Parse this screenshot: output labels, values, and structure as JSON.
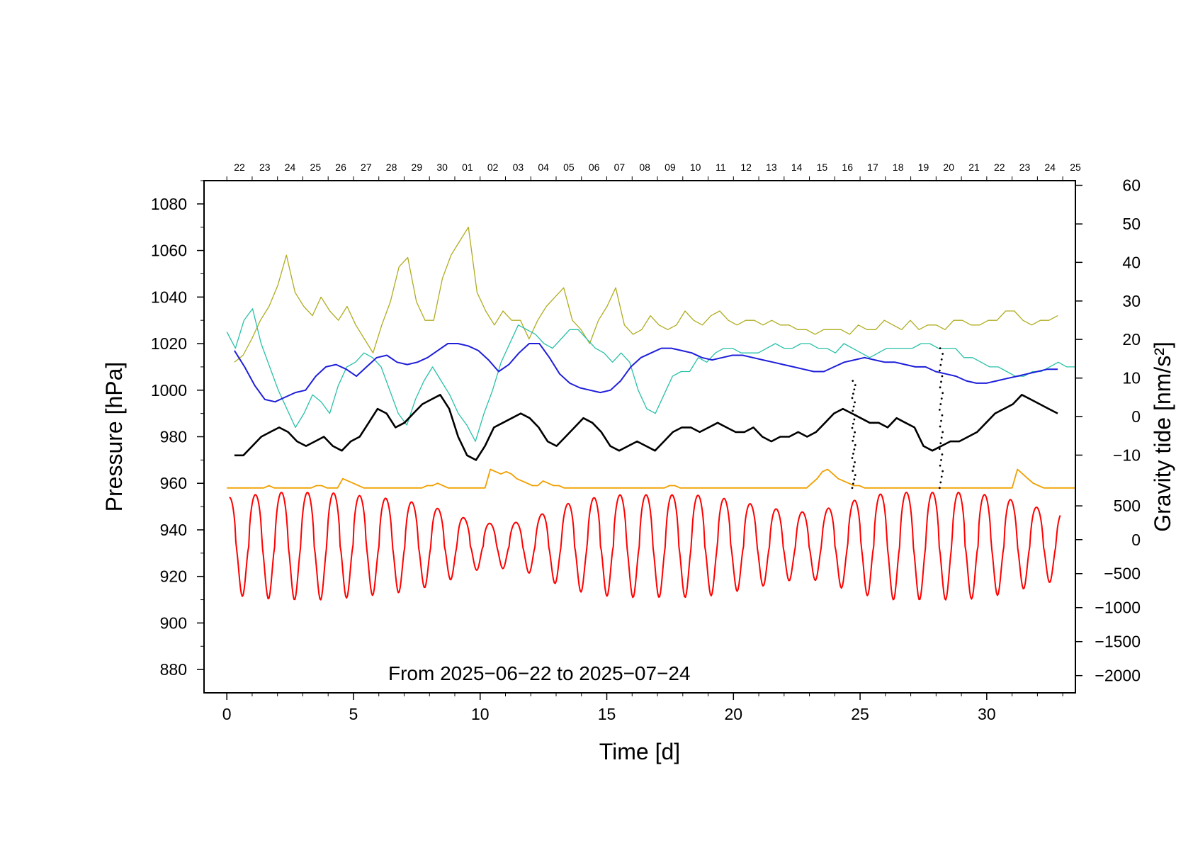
{
  "chart_data": {
    "type": "line",
    "period_label": "From 2025−06−22 to 2025−07−24",
    "xlabel": "Time [d]",
    "ylabel_left": "Pressure [hPa]",
    "ylabel_right": "Gravity tide [nm/s²]",
    "xlim": [
      -0.9,
      33.5
    ],
    "ylim_left": [
      870,
      1090
    ],
    "x_ticks": [
      {
        "value": 0,
        "label": "0"
      },
      {
        "value": 5,
        "label": "5"
      },
      {
        "value": 10,
        "label": "10"
      },
      {
        "value": 15,
        "label": "15"
      },
      {
        "value": 20,
        "label": "20"
      },
      {
        "value": 25,
        "label": "25"
      },
      {
        "value": 30,
        "label": "30"
      }
    ],
    "y_ticks_left": [
      {
        "value": 880,
        "label": "880"
      },
      {
        "value": 900,
        "label": "900"
      },
      {
        "value": 920,
        "label": "920"
      },
      {
        "value": 940,
        "label": "940"
      },
      {
        "value": 960,
        "label": "960"
      },
      {
        "value": 980,
        "label": "980"
      },
      {
        "value": 1000,
        "label": "1000"
      },
      {
        "value": 1020,
        "label": "1020"
      },
      {
        "value": 1040,
        "label": "1040"
      },
      {
        "value": 1060,
        "label": "1060"
      },
      {
        "value": 1080,
        "label": "1080"
      }
    ],
    "right_axis_upper": {
      "note": "gravity residual scale",
      "ticks": [
        {
          "value": 60,
          "label": "60",
          "y_equiv_hpa": 1088
        },
        {
          "value": 50,
          "label": "50",
          "y_equiv_hpa": 1071.4
        },
        {
          "value": 40,
          "label": "40",
          "y_equiv_hpa": 1054.9
        },
        {
          "value": 30,
          "label": "30",
          "y_equiv_hpa": 1038.3
        },
        {
          "value": 20,
          "label": "20",
          "y_equiv_hpa": 1021.8
        },
        {
          "value": 10,
          "label": "10",
          "y_equiv_hpa": 1005.2
        },
        {
          "value": 0,
          "label": "0",
          "y_equiv_hpa": 988.7
        },
        {
          "value": -10,
          "label": "−10",
          "y_equiv_hpa": 972.1
        }
      ]
    },
    "right_axis_lower": {
      "note": "gravity tide scale",
      "ticks": [
        {
          "value": 500,
          "label": "500",
          "y_equiv_hpa": 950.3
        },
        {
          "value": 0,
          "label": "0",
          "y_equiv_hpa": 935.8
        },
        {
          "value": -500,
          "label": "−500",
          "y_equiv_hpa": 921.2
        },
        {
          "value": -1000,
          "label": "−1000",
          "y_equiv_hpa": 906.6
        },
        {
          "value": -1500,
          "label": "−1500",
          "y_equiv_hpa": 892.0
        },
        {
          "value": -2000,
          "label": "−2000",
          "y_equiv_hpa": 877.4
        }
      ]
    },
    "date_axis_top": {
      "labels": [
        "22",
        "23",
        "24",
        "25",
        "26",
        "27",
        "28",
        "29",
        "30",
        "01",
        "02",
        "03",
        "04",
        "05",
        "06",
        "07",
        "08",
        "09",
        "10",
        "11",
        "12",
        "13",
        "14",
        "15",
        "16",
        "17",
        "18",
        "19",
        "20",
        "21",
        "22",
        "23",
        "24",
        "25"
      ],
      "first_label_x": 0.5
    },
    "series": [
      {
        "key": "olive",
        "color": "#b0ac20",
        "style": "line",
        "width": 1.3,
        "x_start": 0.3,
        "x_end": 32.8,
        "values_hpa": [
          1012,
          1015,
          1022,
          1030,
          1036,
          1045,
          1058,
          1042,
          1036,
          1032,
          1040,
          1034,
          1030,
          1036,
          1028,
          1022,
          1016,
          1028,
          1038,
          1053,
          1057,
          1038,
          1030,
          1030,
          1048,
          1058,
          1064,
          1070,
          1042,
          1034,
          1028,
          1034,
          1030,
          1030,
          1022,
          1030,
          1036,
          1040,
          1044,
          1030,
          1026,
          1020,
          1030,
          1036,
          1044,
          1028,
          1024,
          1026,
          1032,
          1028,
          1026,
          1028,
          1034,
          1030,
          1028,
          1032,
          1034,
          1030,
          1028,
          1030,
          1030,
          1028,
          1030,
          1028,
          1028,
          1026,
          1026,
          1024,
          1026,
          1026,
          1026,
          1024,
          1028,
          1026,
          1026,
          1030,
          1028,
          1026,
          1030,
          1026,
          1028,
          1028,
          1026,
          1030,
          1030,
          1028,
          1028,
          1030,
          1030,
          1034,
          1034,
          1030,
          1028,
          1030,
          1030,
          1032
        ]
      },
      {
        "key": "teal",
        "color": "#28c0a8",
        "style": "line",
        "width": 1.3,
        "x_start": 0.0,
        "x_end": 33.5,
        "values_hpa": [
          1025,
          1018,
          1030,
          1035,
          1020,
          1010,
          1000,
          992,
          984,
          990,
          998,
          995,
          990,
          1002,
          1010,
          1012,
          1016,
          1014,
          1010,
          1000,
          990,
          985,
          996,
          1004,
          1010,
          1004,
          998,
          990,
          985,
          978,
          990,
          1000,
          1012,
          1020,
          1028,
          1026,
          1024,
          1020,
          1018,
          1022,
          1026,
          1026,
          1022,
          1018,
          1016,
          1012,
          1016,
          1012,
          1000,
          992,
          990,
          998,
          1006,
          1008,
          1008,
          1014,
          1012,
          1016,
          1018,
          1018,
          1016,
          1016,
          1016,
          1018,
          1020,
          1018,
          1018,
          1020,
          1020,
          1018,
          1018,
          1016,
          1020,
          1018,
          1016,
          1014,
          1016,
          1018,
          1018,
          1018,
          1018,
          1020,
          1020,
          1018,
          1018,
          1018,
          1014,
          1014,
          1012,
          1010,
          1010,
          1008,
          1006,
          1006,
          1008,
          1008,
          1010,
          1012,
          1010,
          1010
        ]
      },
      {
        "key": "blue",
        "color": "#1e1eda",
        "style": "line",
        "width": 2.0,
        "x_start": 0.3,
        "x_end": 32.8,
        "values_hpa": [
          1017,
          1010,
          1002,
          996,
          995,
          997,
          999,
          1000,
          1006,
          1010,
          1011,
          1009,
          1006,
          1010,
          1014,
          1015,
          1012,
          1011,
          1012,
          1014,
          1017,
          1020,
          1020,
          1019,
          1017,
          1013,
          1008,
          1011,
          1016,
          1020,
          1020,
          1014,
          1007,
          1003,
          1001,
          1000,
          999,
          1000,
          1004,
          1010,
          1014,
          1016,
          1018,
          1018,
          1017,
          1016,
          1014,
          1013,
          1014,
          1015,
          1015,
          1014,
          1013,
          1012,
          1011,
          1010,
          1009,
          1008,
          1008,
          1010,
          1012,
          1013,
          1014,
          1013,
          1012,
          1012,
          1011,
          1010,
          1010,
          1008,
          1007,
          1006,
          1004,
          1003,
          1003,
          1004,
          1005,
          1006,
          1007,
          1008,
          1009,
          1009
        ]
      },
      {
        "key": "black",
        "color": "#000000",
        "style": "line",
        "width": 2.6,
        "x_start": 0.3,
        "x_end": 32.8,
        "values_hpa": [
          972,
          972,
          976,
          980,
          982,
          984,
          982,
          978,
          976,
          978,
          980,
          976,
          974,
          978,
          980,
          986,
          992,
          990,
          984,
          986,
          990,
          994,
          996,
          998,
          992,
          980,
          972,
          970,
          976,
          984,
          986,
          988,
          990,
          988,
          984,
          978,
          976,
          980,
          984,
          988,
          986,
          982,
          976,
          974,
          976,
          978,
          976,
          974,
          978,
          982,
          984,
          984,
          982,
          984,
          986,
          984,
          982,
          982,
          984,
          980,
          978,
          980,
          980,
          982,
          980,
          982,
          986,
          990,
          992,
          990,
          988,
          986,
          986,
          984,
          988,
          986,
          984,
          976,
          974,
          976,
          978,
          978,
          980,
          982,
          986,
          990,
          992,
          994,
          998,
          996,
          994,
          992,
          990
        ]
      },
      {
        "key": "orange",
        "color": "#f0a000",
        "style": "line",
        "width": 1.8,
        "x_start": 0.0,
        "x_end": 33.5,
        "values_hpa": [
          958,
          958,
          958,
          958,
          958,
          958,
          958,
          958,
          959,
          958,
          958,
          958,
          958,
          958,
          958,
          958,
          958,
          959,
          959,
          958,
          958,
          958,
          962,
          961,
          960,
          959,
          958,
          958,
          958,
          958,
          958,
          958,
          958,
          958,
          958,
          958,
          958,
          958,
          959,
          959,
          960,
          959,
          958,
          958,
          958,
          958,
          958,
          958,
          958,
          958,
          966,
          965,
          964,
          965,
          964,
          962,
          961,
          960,
          959,
          959,
          961,
          960,
          959,
          959,
          958,
          958,
          958,
          958,
          958,
          958,
          958,
          958,
          958,
          958,
          958,
          958,
          958,
          958,
          958,
          958,
          958,
          958,
          958,
          958,
          959,
          959,
          958,
          958,
          958,
          958,
          958,
          958,
          958,
          958,
          958,
          958,
          958,
          958,
          958,
          958,
          958,
          958,
          958,
          958,
          958,
          958,
          958,
          958,
          958,
          958,
          958,
          960,
          962,
          965,
          966,
          964,
          962,
          961,
          960,
          959,
          959,
          958,
          958,
          958,
          958,
          958,
          958,
          958,
          958,
          958,
          958,
          958,
          958,
          958,
          958,
          958,
          958,
          958,
          958,
          958,
          958,
          958,
          958,
          958,
          958,
          958,
          958,
          958,
          958,
          958,
          966,
          964,
          962,
          960,
          959,
          958,
          958,
          958,
          958,
          958,
          958,
          958
        ]
      },
      {
        "key": "red",
        "color": "#ff0000",
        "style": "tide",
        "width": 2.0,
        "x_start": 0.1,
        "x_end": 32.9,
        "amplitude_hpa": [
          20,
          21,
          22,
          22,
          22,
          21,
          20,
          19,
          17,
          14,
          10,
          9,
          10,
          14,
          18,
          20,
          21,
          21,
          21,
          21,
          20,
          18,
          16,
          14,
          14,
          17,
          20,
          22,
          22,
          22,
          22,
          21,
          19,
          16,
          14
        ],
        "center_hpa": 924
      }
    ],
    "scatter_clusters": [
      {
        "color": "#000000",
        "x": 24.75,
        "y_range": [
          958,
          1004
        ]
      },
      {
        "color": "#000000",
        "x": 28.2,
        "y_range": [
          958,
          1018
        ]
      }
    ]
  }
}
